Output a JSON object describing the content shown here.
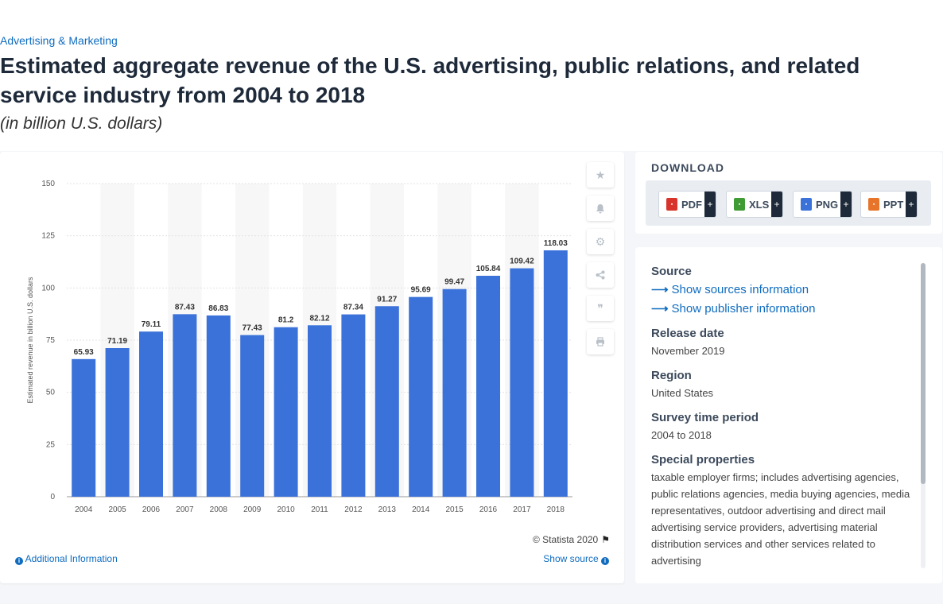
{
  "header": {
    "breadcrumb": "Advertising & Marketing",
    "title": "Estimated aggregate revenue of the U.S. advertising, public relations, and related service industry from 2004 to 2018",
    "subtitle": "(in billion U.S. dollars)"
  },
  "chart_data": {
    "type": "bar",
    "categories": [
      "2004",
      "2005",
      "2006",
      "2007",
      "2008",
      "2009",
      "2010",
      "2011",
      "2012",
      "2013",
      "2014",
      "2015",
      "2016",
      "2017",
      "2018"
    ],
    "values": [
      65.93,
      71.19,
      79.11,
      87.43,
      86.83,
      77.43,
      81.2,
      82.12,
      87.34,
      91.27,
      95.69,
      99.47,
      105.84,
      109.42,
      118.03
    ],
    "value_labels": [
      "65.93",
      "71.19",
      "79.11",
      "87.43",
      "86.83",
      "77.43",
      "81.2",
      "82.12",
      "87.34",
      "91.27",
      "95.69",
      "99.47",
      "105.84",
      "109.42",
      "118.03"
    ],
    "ylabel": "Estimated revenue in billion U.S. dollars",
    "xlabel": "",
    "ylim": [
      0,
      150
    ],
    "yticks": [
      0,
      25,
      50,
      75,
      100,
      125,
      150
    ],
    "bar_color": "#3b72d9",
    "grid": true
  },
  "chart_footer": {
    "copyright": "© Statista 2020",
    "additional_info": "Additional Information",
    "show_source": "Show source"
  },
  "toolbar": {
    "icons": [
      "star-icon",
      "bell-icon",
      "gear-icon",
      "share-icon",
      "quote-icon",
      "print-icon"
    ]
  },
  "download": {
    "title": "DOWNLOAD",
    "buttons": [
      {
        "label": "PDF",
        "color": "#d9342b"
      },
      {
        "label": "XLS",
        "color": "#3f9c35"
      },
      {
        "label": "PNG",
        "color": "#3b72d9"
      },
      {
        "label": "PPT",
        "color": "#e8742a"
      }
    ],
    "plus": "+"
  },
  "meta": {
    "source_heading": "Source",
    "show_sources": "Show sources information",
    "show_publisher": "Show publisher information",
    "release_heading": "Release date",
    "release_value": "November 2019",
    "region_heading": "Region",
    "region_value": "United States",
    "survey_heading": "Survey time period",
    "survey_value": "2004 to 2018",
    "special_heading": "Special properties",
    "special_value": "taxable employer firms; includes advertising agencies, public relations agencies, media buying agencies, media representatives, outdoor advertising and direct mail advertising service providers, advertising material distribution services and other services related to advertising"
  }
}
